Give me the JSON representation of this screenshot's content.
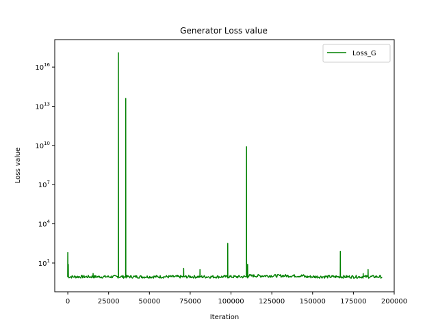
{
  "chart_data": {
    "type": "line",
    "title": "Generator Loss value",
    "xlabel": "Iteration",
    "ylabel": "Loss value",
    "xlim": [
      -8000,
      200000
    ],
    "ylim_log10": [
      -1.2,
      18.1
    ],
    "yscale": "log",
    "grid": false,
    "legend_position": "top-right",
    "x_ticks": [
      {
        "value": 0,
        "label": "0"
      },
      {
        "value": 25000,
        "label": "25000"
      },
      {
        "value": 50000,
        "label": "50000"
      },
      {
        "value": 75000,
        "label": "75000"
      },
      {
        "value": 100000,
        "label": "100000"
      },
      {
        "value": 125000,
        "label": "125000"
      },
      {
        "value": 150000,
        "label": "150000"
      },
      {
        "value": 175000,
        "label": "175000"
      },
      {
        "value": 200000,
        "label": "200000"
      }
    ],
    "y_ticks": [
      {
        "value": 1,
        "base": "10",
        "exp": "1"
      },
      {
        "value": 4,
        "base": "10",
        "exp": "4"
      },
      {
        "value": 7,
        "base": "10",
        "exp": "7"
      },
      {
        "value": 10,
        "base": "10",
        "exp": "10"
      },
      {
        "value": 13,
        "base": "10",
        "exp": "13"
      },
      {
        "value": 16,
        "base": "10",
        "exp": "16"
      }
    ],
    "series": [
      {
        "name": "Loss_G",
        "color": "#008000",
        "baseline_log10": -0.05,
        "x_range": [
          0,
          193000
        ],
        "spikes": [
          {
            "x": 0,
            "log10_value": 1.8
          },
          {
            "x": 300,
            "log10_value": 0.9
          },
          {
            "x": 15500,
            "log10_value": 0.2
          },
          {
            "x": 31000,
            "log10_value": 17.1
          },
          {
            "x": 35500,
            "log10_value": 13.6
          },
          {
            "x": 71000,
            "log10_value": 0.6
          },
          {
            "x": 81000,
            "log10_value": 0.5
          },
          {
            "x": 98000,
            "log10_value": 2.5
          },
          {
            "x": 109500,
            "log10_value": 9.9
          },
          {
            "x": 110200,
            "log10_value": 0.9
          },
          {
            "x": 167000,
            "log10_value": 1.9
          },
          {
            "x": 181000,
            "log10_value": 0.2
          },
          {
            "x": 184000,
            "log10_value": 0.5
          }
        ]
      }
    ]
  }
}
